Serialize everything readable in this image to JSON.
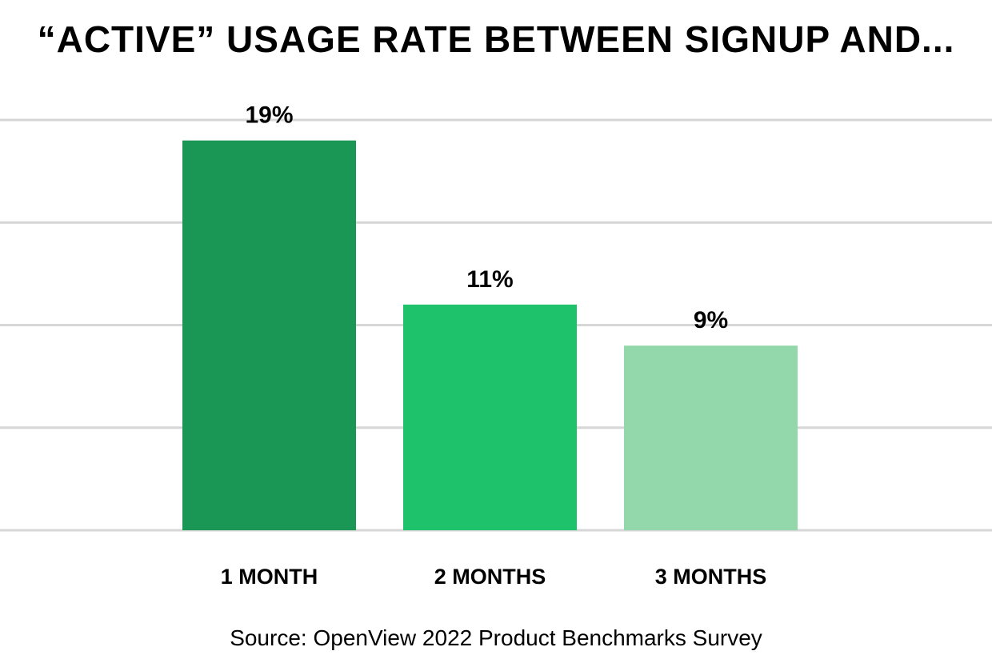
{
  "chart_data": {
    "type": "bar",
    "title": "“ACTIVE” USAGE RATE BETWEEN SIGNUP AND...",
    "categories": [
      "1 MONTH",
      "2 MONTHS",
      "3 MONTHS"
    ],
    "values": [
      19,
      11,
      9
    ],
    "value_labels": [
      "19%",
      "11%",
      "9%"
    ],
    "bar_colors": [
      "#1a9655",
      "#1dc26b",
      "#93d8aa"
    ],
    "ylim": [
      0,
      20
    ],
    "grid": true,
    "legend": "none"
  },
  "source": "Source: OpenView 2022 Product Benchmarks Survey"
}
